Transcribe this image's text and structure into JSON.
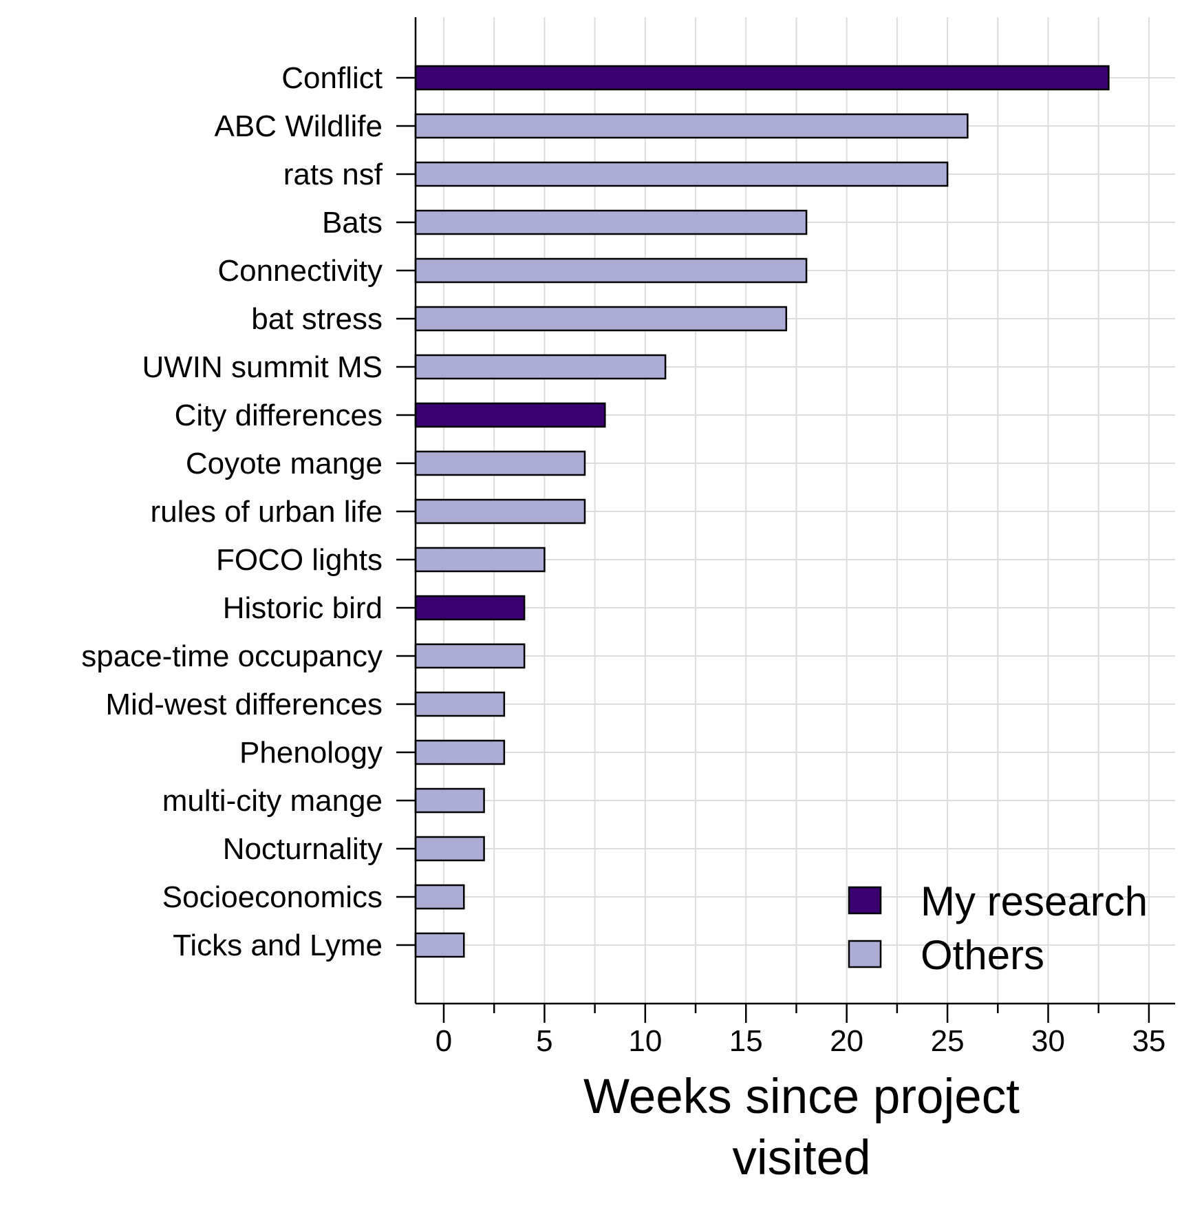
{
  "chart_data": {
    "type": "bar",
    "orientation": "horizontal",
    "categories": [
      "Conflict",
      "ABC Wildlife",
      "rats nsf",
      "Bats",
      "Connectivity",
      "bat stress",
      "UWIN summit MS",
      "City differences",
      "Coyote mange",
      "rules of urban life",
      "FOCO lights",
      "Historic bird",
      "space-time occupancy",
      "Mid-west differences",
      "Phenology",
      "multi-city mange",
      "Nocturnality",
      "Socioeconomics",
      "Ticks and Lyme"
    ],
    "values": [
      33,
      26,
      25,
      18,
      18,
      17,
      11,
      8,
      7,
      7,
      5,
      4,
      4,
      3,
      3,
      2,
      2,
      1,
      1
    ],
    "groups": [
      "My research",
      "Others",
      "Others",
      "Others",
      "Others",
      "Others",
      "Others",
      "My research",
      "Others",
      "Others",
      "Others",
      "My research",
      "Others",
      "Others",
      "Others",
      "Others",
      "Others",
      "Others",
      "Others"
    ],
    "legend": {
      "position": "bottom-right",
      "entries": [
        {
          "name": "My research",
          "color": "#3a006f"
        },
        {
          "name": "Others",
          "color": "#acacd6"
        }
      ]
    },
    "xlabel_line1": "Weeks since project",
    "xlabel_line2": "visited",
    "ylabel": "",
    "xlim": [
      -1.4,
      36.3
    ],
    "xticks": [
      0,
      5,
      10,
      15,
      20,
      25,
      30,
      35
    ],
    "grid": true
  }
}
